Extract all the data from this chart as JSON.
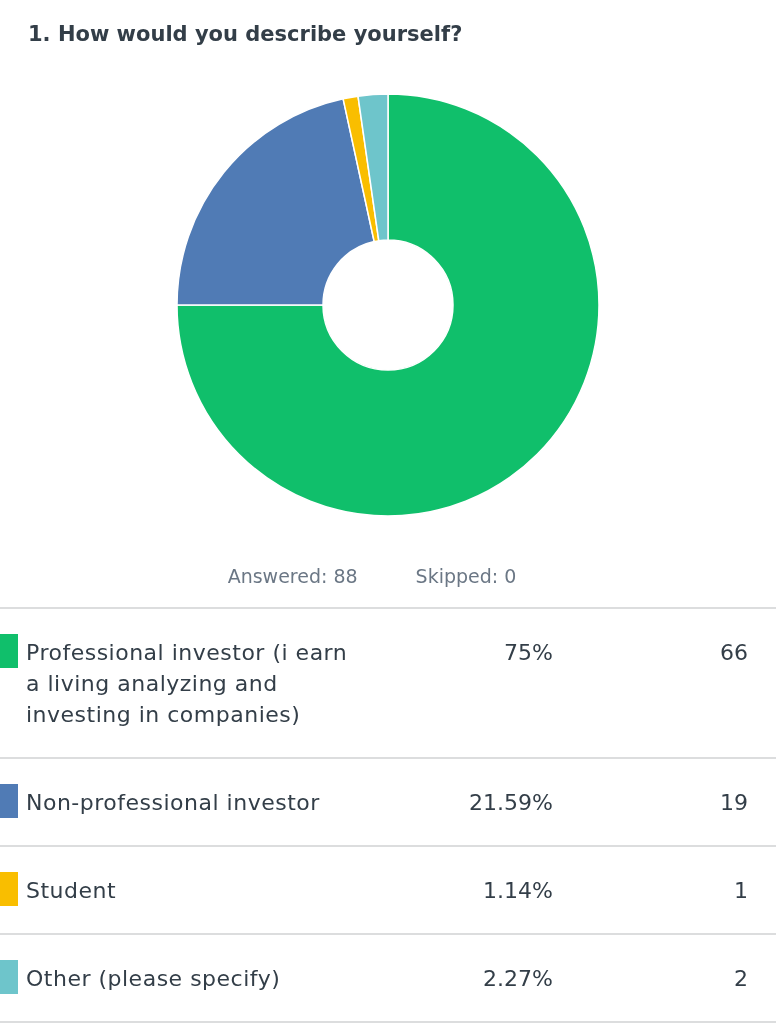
{
  "chart_data": {
    "type": "donut",
    "title": "1. How would you describe yourself?",
    "categories": [
      "Professional investor (i earn a living analyzing and investing in companies)",
      "Non-professional investor",
      "Student",
      "Other (please specify)"
    ],
    "values": [
      75,
      21.59,
      1.14,
      2.27
    ],
    "value_labels": [
      "75%",
      "21.59%",
      "1.14%",
      "2.27%"
    ],
    "colors": [
      "#10bf6b",
      "#507bb5",
      "#f9be00",
      "#6ec5cb"
    ],
    "legend": "bottom",
    "annotations": [
      "Answered: 88",
      "Skipped: 0",
      "66",
      "19",
      "1",
      "2"
    ]
  }
}
